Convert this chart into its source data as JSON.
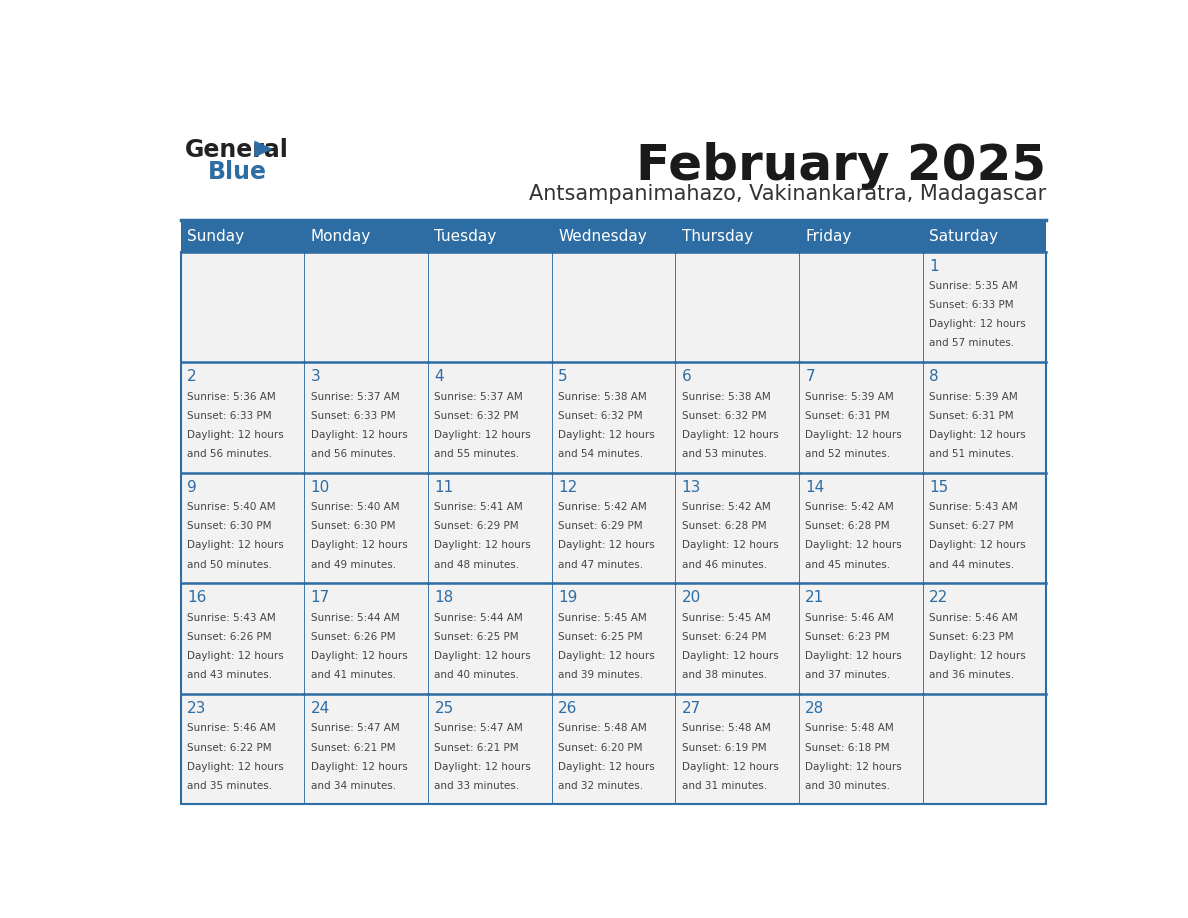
{
  "title": "February 2025",
  "subtitle": "Antsampanimahazo, Vakinankaratra, Madagascar",
  "days_of_week": [
    "Sunday",
    "Monday",
    "Tuesday",
    "Wednesday",
    "Thursday",
    "Friday",
    "Saturday"
  ],
  "header_bg": "#2E6DA4",
  "header_text": "#FFFFFF",
  "cell_bg": "#F2F2F2",
  "border_color": "#2E6DA4",
  "day_num_color": "#2E6DA4",
  "cell_text_color": "#444444",
  "title_color": "#1a1a1a",
  "subtitle_color": "#333333",
  "calendar": [
    [
      null,
      null,
      null,
      null,
      null,
      null,
      {
        "day": 1,
        "sunrise": "5:35 AM",
        "sunset": "6:33 PM",
        "daylight": "12 hours and 57 minutes."
      }
    ],
    [
      {
        "day": 2,
        "sunrise": "5:36 AM",
        "sunset": "6:33 PM",
        "daylight": "12 hours and 56 minutes."
      },
      {
        "day": 3,
        "sunrise": "5:37 AM",
        "sunset": "6:33 PM",
        "daylight": "12 hours and 56 minutes."
      },
      {
        "day": 4,
        "sunrise": "5:37 AM",
        "sunset": "6:32 PM",
        "daylight": "12 hours and 55 minutes."
      },
      {
        "day": 5,
        "sunrise": "5:38 AM",
        "sunset": "6:32 PM",
        "daylight": "12 hours and 54 minutes."
      },
      {
        "day": 6,
        "sunrise": "5:38 AM",
        "sunset": "6:32 PM",
        "daylight": "12 hours and 53 minutes."
      },
      {
        "day": 7,
        "sunrise": "5:39 AM",
        "sunset": "6:31 PM",
        "daylight": "12 hours and 52 minutes."
      },
      {
        "day": 8,
        "sunrise": "5:39 AM",
        "sunset": "6:31 PM",
        "daylight": "12 hours and 51 minutes."
      }
    ],
    [
      {
        "day": 9,
        "sunrise": "5:40 AM",
        "sunset": "6:30 PM",
        "daylight": "12 hours and 50 minutes."
      },
      {
        "day": 10,
        "sunrise": "5:40 AM",
        "sunset": "6:30 PM",
        "daylight": "12 hours and 49 minutes."
      },
      {
        "day": 11,
        "sunrise": "5:41 AM",
        "sunset": "6:29 PM",
        "daylight": "12 hours and 48 minutes."
      },
      {
        "day": 12,
        "sunrise": "5:42 AM",
        "sunset": "6:29 PM",
        "daylight": "12 hours and 47 minutes."
      },
      {
        "day": 13,
        "sunrise": "5:42 AM",
        "sunset": "6:28 PM",
        "daylight": "12 hours and 46 minutes."
      },
      {
        "day": 14,
        "sunrise": "5:42 AM",
        "sunset": "6:28 PM",
        "daylight": "12 hours and 45 minutes."
      },
      {
        "day": 15,
        "sunrise": "5:43 AM",
        "sunset": "6:27 PM",
        "daylight": "12 hours and 44 minutes."
      }
    ],
    [
      {
        "day": 16,
        "sunrise": "5:43 AM",
        "sunset": "6:26 PM",
        "daylight": "12 hours and 43 minutes."
      },
      {
        "day": 17,
        "sunrise": "5:44 AM",
        "sunset": "6:26 PM",
        "daylight": "12 hours and 41 minutes."
      },
      {
        "day": 18,
        "sunrise": "5:44 AM",
        "sunset": "6:25 PM",
        "daylight": "12 hours and 40 minutes."
      },
      {
        "day": 19,
        "sunrise": "5:45 AM",
        "sunset": "6:25 PM",
        "daylight": "12 hours and 39 minutes."
      },
      {
        "day": 20,
        "sunrise": "5:45 AM",
        "sunset": "6:24 PM",
        "daylight": "12 hours and 38 minutes."
      },
      {
        "day": 21,
        "sunrise": "5:46 AM",
        "sunset": "6:23 PM",
        "daylight": "12 hours and 37 minutes."
      },
      {
        "day": 22,
        "sunrise": "5:46 AM",
        "sunset": "6:23 PM",
        "daylight": "12 hours and 36 minutes."
      }
    ],
    [
      {
        "day": 23,
        "sunrise": "5:46 AM",
        "sunset": "6:22 PM",
        "daylight": "12 hours and 35 minutes."
      },
      {
        "day": 24,
        "sunrise": "5:47 AM",
        "sunset": "6:21 PM",
        "daylight": "12 hours and 34 minutes."
      },
      {
        "day": 25,
        "sunrise": "5:47 AM",
        "sunset": "6:21 PM",
        "daylight": "12 hours and 33 minutes."
      },
      {
        "day": 26,
        "sunrise": "5:48 AM",
        "sunset": "6:20 PM",
        "daylight": "12 hours and 32 minutes."
      },
      {
        "day": 27,
        "sunrise": "5:48 AM",
        "sunset": "6:19 PM",
        "daylight": "12 hours and 31 minutes."
      },
      {
        "day": 28,
        "sunrise": "5:48 AM",
        "sunset": "6:18 PM",
        "daylight": "12 hours and 30 minutes."
      },
      null
    ]
  ]
}
